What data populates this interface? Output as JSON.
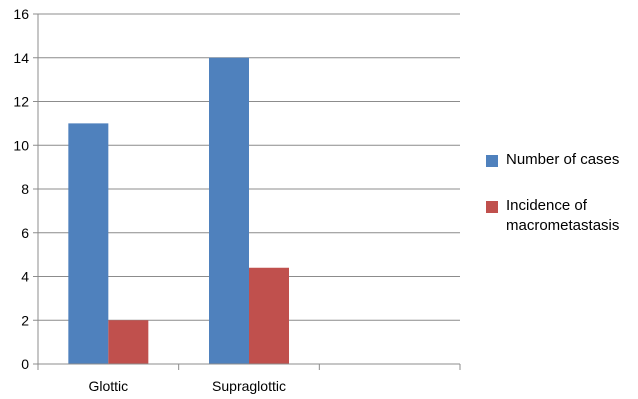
{
  "chart_data": {
    "type": "bar",
    "categories": [
      "Glottic",
      "Supraglottic",
      ""
    ],
    "series": [
      {
        "name": "Number of cases",
        "values": [
          11,
          14,
          null
        ],
        "color": "#4F81BD"
      },
      {
        "name": "Incidence of macrometastasis",
        "values": [
          2,
          4.4,
          null
        ],
        "color": "#C0504D"
      }
    ],
    "ylim": [
      0,
      16
    ],
    "yticks": [
      0,
      2,
      4,
      6,
      8,
      10,
      12,
      14,
      16
    ],
    "grid": true,
    "legend_position": "right",
    "title": "",
    "xlabel": "",
    "ylabel": ""
  }
}
